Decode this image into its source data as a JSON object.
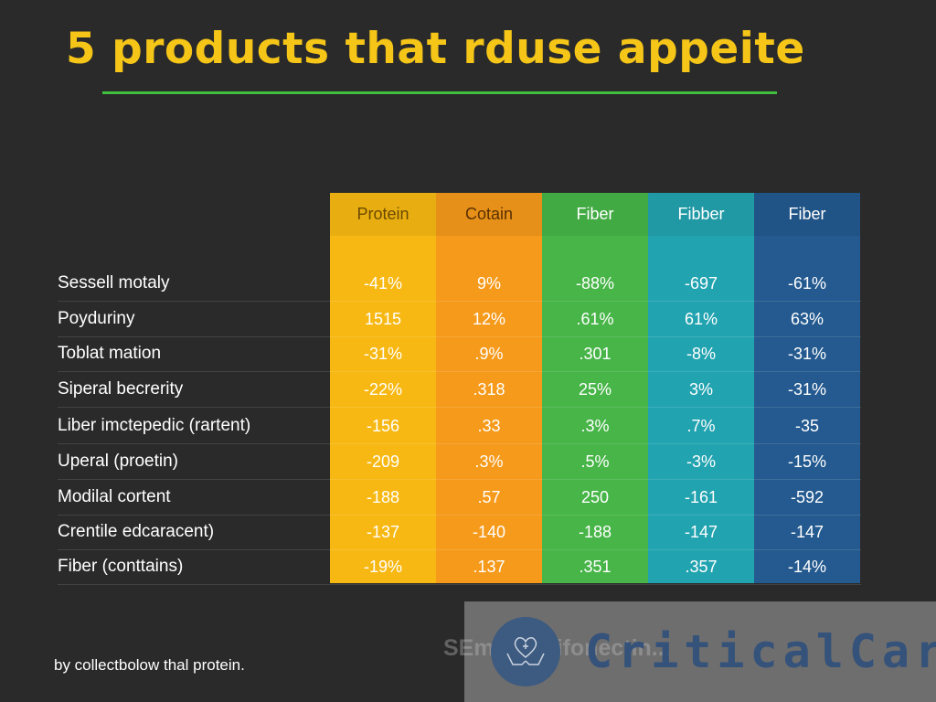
{
  "title": "5 products that rduse appeite",
  "footer": "by collectbolow thal protein.",
  "watermark": {
    "brand": "CriticalCare",
    "ghost_text": "SEm pure ifonectin..."
  },
  "columns": [
    {
      "label": "Protein",
      "color": "#f7b813",
      "text_color": "#6b4a00"
    },
    {
      "label": "Cotain",
      "color": "#f59a1b",
      "text_color": "#5a3000"
    },
    {
      "label": "Fiber",
      "color": "#47b548",
      "text_color": "#ffffff"
    },
    {
      "label": "Fibber",
      "color": "#22a3b0",
      "text_color": "#ffffff"
    },
    {
      "label": "Fiber",
      "color": "#245a8f",
      "text_color": "#ffffff"
    }
  ],
  "rows": [
    {
      "label": "Sessell motaly",
      "values": [
        "-41%",
        "9%",
        "-88%",
        "-697",
        "-61%"
      ]
    },
    {
      "label": "Poyduriny",
      "values": [
        "1515",
        "12%",
        ".61%",
        "61%",
        "63%"
      ]
    },
    {
      "label": "Toblat mation",
      "values": [
        "-31%",
        ".9%",
        ".301",
        "-8%",
        "-31%"
      ]
    },
    {
      "label": "Siperal becrerity",
      "values": [
        "-22%",
        ".318",
        "25%",
        "3%",
        "-31%"
      ]
    },
    {
      "label": "Liber imctepedic (rartent)",
      "values": [
        "-156",
        ".33",
        ".3%",
        ".7%",
        "-35"
      ]
    },
    {
      "label": "Uperal (proetin)",
      "values": [
        "-209",
        ".3%",
        ".5%",
        "-3%",
        "-15%"
      ]
    },
    {
      "label": "Modilal cortent",
      "values": [
        "-188",
        ".57",
        "250",
        "-161",
        "-592"
      ]
    },
    {
      "label": "Crentile edcaracent)",
      "values": [
        "-137",
        "-140",
        "-188",
        "-147",
        "-147"
      ]
    },
    {
      "label": "Fiber (conttains)",
      "values": [
        "-19%",
        ".137",
        ".351",
        ".357",
        "-14%"
      ]
    }
  ]
}
